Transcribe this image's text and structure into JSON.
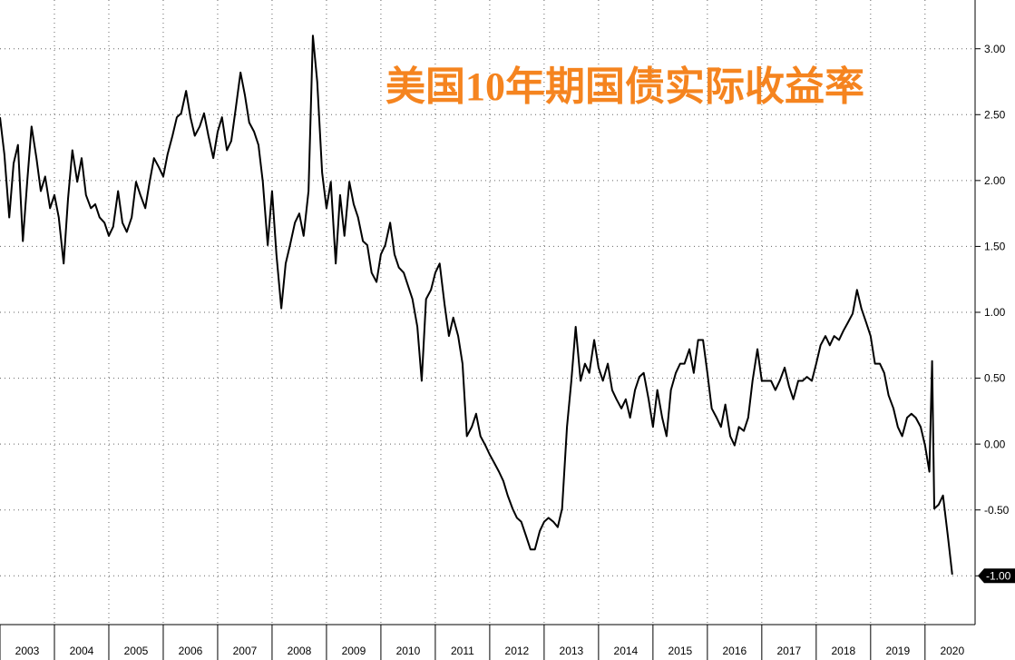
{
  "chart_data": {
    "type": "line",
    "title": "美国10年期国债实际收益率",
    "color": "#000000",
    "grid": true,
    "xlim": [
      2003,
      2020.92
    ],
    "ylim": [
      -1.37,
      3.37
    ],
    "xticks": [
      2003,
      2004,
      2005,
      2006,
      2007,
      2008,
      2009,
      2010,
      2011,
      2012,
      2013,
      2014,
      2015,
      2016,
      2017,
      2018,
      2019,
      2020
    ],
    "yticks": [
      {
        "value": -1,
        "label": "-1.00"
      },
      {
        "value": -0.5,
        "label": "-0.50"
      },
      {
        "value": 0,
        "label": "0.00"
      },
      {
        "value": 0.5,
        "label": "0.50"
      },
      {
        "value": 1,
        "label": "1.00"
      },
      {
        "value": 1.5,
        "label": "1.50"
      },
      {
        "value": 2,
        "label": "2.00"
      },
      {
        "value": 2.5,
        "label": "2.50"
      },
      {
        "value": 3,
        "label": "3.00"
      }
    ],
    "x": [
      2003,
      2003.08,
      2003.17,
      2003.25,
      2003.33,
      2003.42,
      2003.5,
      2003.58,
      2003.67,
      2003.75,
      2003.83,
      2003.92,
      2004,
      2004.08,
      2004.17,
      2004.25,
      2004.33,
      2004.42,
      2004.5,
      2004.58,
      2004.67,
      2004.75,
      2004.83,
      2004.92,
      2005,
      2005.08,
      2005.17,
      2005.25,
      2005.33,
      2005.42,
      2005.5,
      2005.58,
      2005.67,
      2005.75,
      2005.83,
      2005.92,
      2006,
      2006.08,
      2006.17,
      2006.25,
      2006.33,
      2006.42,
      2006.5,
      2006.58,
      2006.67,
      2006.75,
      2006.83,
      2006.92,
      2007,
      2007.08,
      2007.17,
      2007.25,
      2007.33,
      2007.42,
      2007.5,
      2007.58,
      2007.67,
      2007.75,
      2007.83,
      2007.92,
      2008,
      2008.08,
      2008.17,
      2008.25,
      2008.33,
      2008.42,
      2008.5,
      2008.58,
      2008.67,
      2008.75,
      2008.83,
      2008.92,
      2009,
      2009.08,
      2009.17,
      2009.25,
      2009.33,
      2009.42,
      2009.5,
      2009.58,
      2009.67,
      2009.75,
      2009.83,
      2009.92,
      2010,
      2010.08,
      2010.17,
      2010.25,
      2010.33,
      2010.42,
      2010.5,
      2010.58,
      2010.67,
      2010.75,
      2010.83,
      2010.92,
      2011,
      2011.08,
      2011.17,
      2011.25,
      2011.33,
      2011.42,
      2011.5,
      2011.58,
      2011.67,
      2011.75,
      2011.83,
      2011.92,
      2012,
      2012.08,
      2012.17,
      2012.25,
      2012.33,
      2012.42,
      2012.5,
      2012.58,
      2012.67,
      2012.75,
      2012.83,
      2012.92,
      2013,
      2013.08,
      2013.17,
      2013.25,
      2013.33,
      2013.42,
      2013.5,
      2013.58,
      2013.67,
      2013.75,
      2013.83,
      2013.92,
      2014,
      2014.08,
      2014.17,
      2014.25,
      2014.33,
      2014.42,
      2014.5,
      2014.58,
      2014.67,
      2014.75,
      2014.83,
      2014.92,
      2015,
      2015.08,
      2015.17,
      2015.25,
      2015.33,
      2015.42,
      2015.5,
      2015.58,
      2015.67,
      2015.75,
      2015.83,
      2015.92,
      2016,
      2016.08,
      2016.17,
      2016.25,
      2016.33,
      2016.42,
      2016.5,
      2016.58,
      2016.67,
      2016.75,
      2016.83,
      2016.92,
      2017,
      2017.08,
      2017.17,
      2017.25,
      2017.33,
      2017.42,
      2017.5,
      2017.58,
      2017.67,
      2017.75,
      2017.83,
      2017.92,
      2018,
      2018.08,
      2018.17,
      2018.25,
      2018.33,
      2018.42,
      2018.5,
      2018.58,
      2018.67,
      2018.75,
      2018.83,
      2018.92,
      2019,
      2019.08,
      2019.17,
      2019.25,
      2019.33,
      2019.42,
      2019.5,
      2019.58,
      2019.67,
      2019.75,
      2019.83,
      2019.92,
      2020,
      2020.08,
      2020.13,
      2020.17,
      2020.25,
      2020.33,
      2020.42,
      2020.5
    ],
    "values": [
      2.48,
      2.2,
      1.72,
      2.13,
      2.27,
      1.54,
      1.99,
      2.41,
      2.17,
      1.92,
      2.03,
      1.79,
      1.89,
      1.72,
      1.37,
      1.86,
      2.23,
      1.99,
      2.17,
      1.89,
      1.79,
      1.82,
      1.72,
      1.68,
      1.58,
      1.65,
      1.92,
      1.68,
      1.61,
      1.72,
      1.99,
      1.89,
      1.79,
      1.99,
      2.17,
      2.1,
      2.03,
      2.2,
      2.34,
      2.48,
      2.51,
      2.68,
      2.48,
      2.34,
      2.41,
      2.51,
      2.34,
      2.17,
      2.37,
      2.48,
      2.23,
      2.3,
      2.54,
      2.82,
      2.65,
      2.44,
      2.37,
      2.27,
      1.99,
      1.51,
      1.92,
      1.44,
      1.03,
      1.37,
      1.51,
      1.68,
      1.75,
      1.58,
      1.92,
      3.1,
      2.75,
      2.06,
      1.79,
      1.99,
      1.37,
      1.89,
      1.58,
      1.99,
      1.82,
      1.72,
      1.54,
      1.51,
      1.3,
      1.23,
      1.44,
      1.51,
      1.68,
      1.44,
      1.34,
      1.3,
      1.2,
      1.1,
      0.89,
      0.48,
      1.1,
      1.17,
      1.3,
      1.37,
      1.06,
      0.82,
      0.96,
      0.82,
      0.61,
      0.06,
      0.13,
      0.23,
      0.06,
      -0.01,
      -0.08,
      -0.14,
      -0.21,
      -0.28,
      -0.39,
      -0.49,
      -0.56,
      -0.59,
      -0.7,
      -0.8,
      -0.8,
      -0.66,
      -0.59,
      -0.56,
      -0.59,
      -0.63,
      -0.49,
      0.13,
      0.48,
      0.89,
      0.48,
      0.61,
      0.54,
      0.79,
      0.58,
      0.48,
      0.61,
      0.41,
      0.34,
      0.27,
      0.34,
      0.2,
      0.41,
      0.51,
      0.54,
      0.34,
      0.13,
      0.41,
      0.2,
      0.06,
      0.41,
      0.54,
      0.61,
      0.61,
      0.72,
      0.54,
      0.79,
      0.79,
      0.54,
      0.27,
      0.2,
      0.13,
      0.3,
      0.06,
      -0.01,
      0.13,
      0.1,
      0.2,
      0.48,
      0.72,
      0.48,
      0.48,
      0.48,
      0.41,
      0.48,
      0.58,
      0.44,
      0.34,
      0.48,
      0.48,
      0.51,
      0.48,
      0.61,
      0.75,
      0.82,
      0.75,
      0.82,
      0.79,
      0.86,
      0.92,
      0.99,
      1.17,
      1.03,
      0.92,
      0.82,
      0.61,
      0.61,
      0.54,
      0.37,
      0.27,
      0.13,
      0.06,
      0.2,
      0.23,
      0.2,
      0.13,
      -0.01,
      -0.21,
      0.63,
      -0.49,
      -0.46,
      -0.39,
      -0.7,
      -0.99
    ]
  }
}
